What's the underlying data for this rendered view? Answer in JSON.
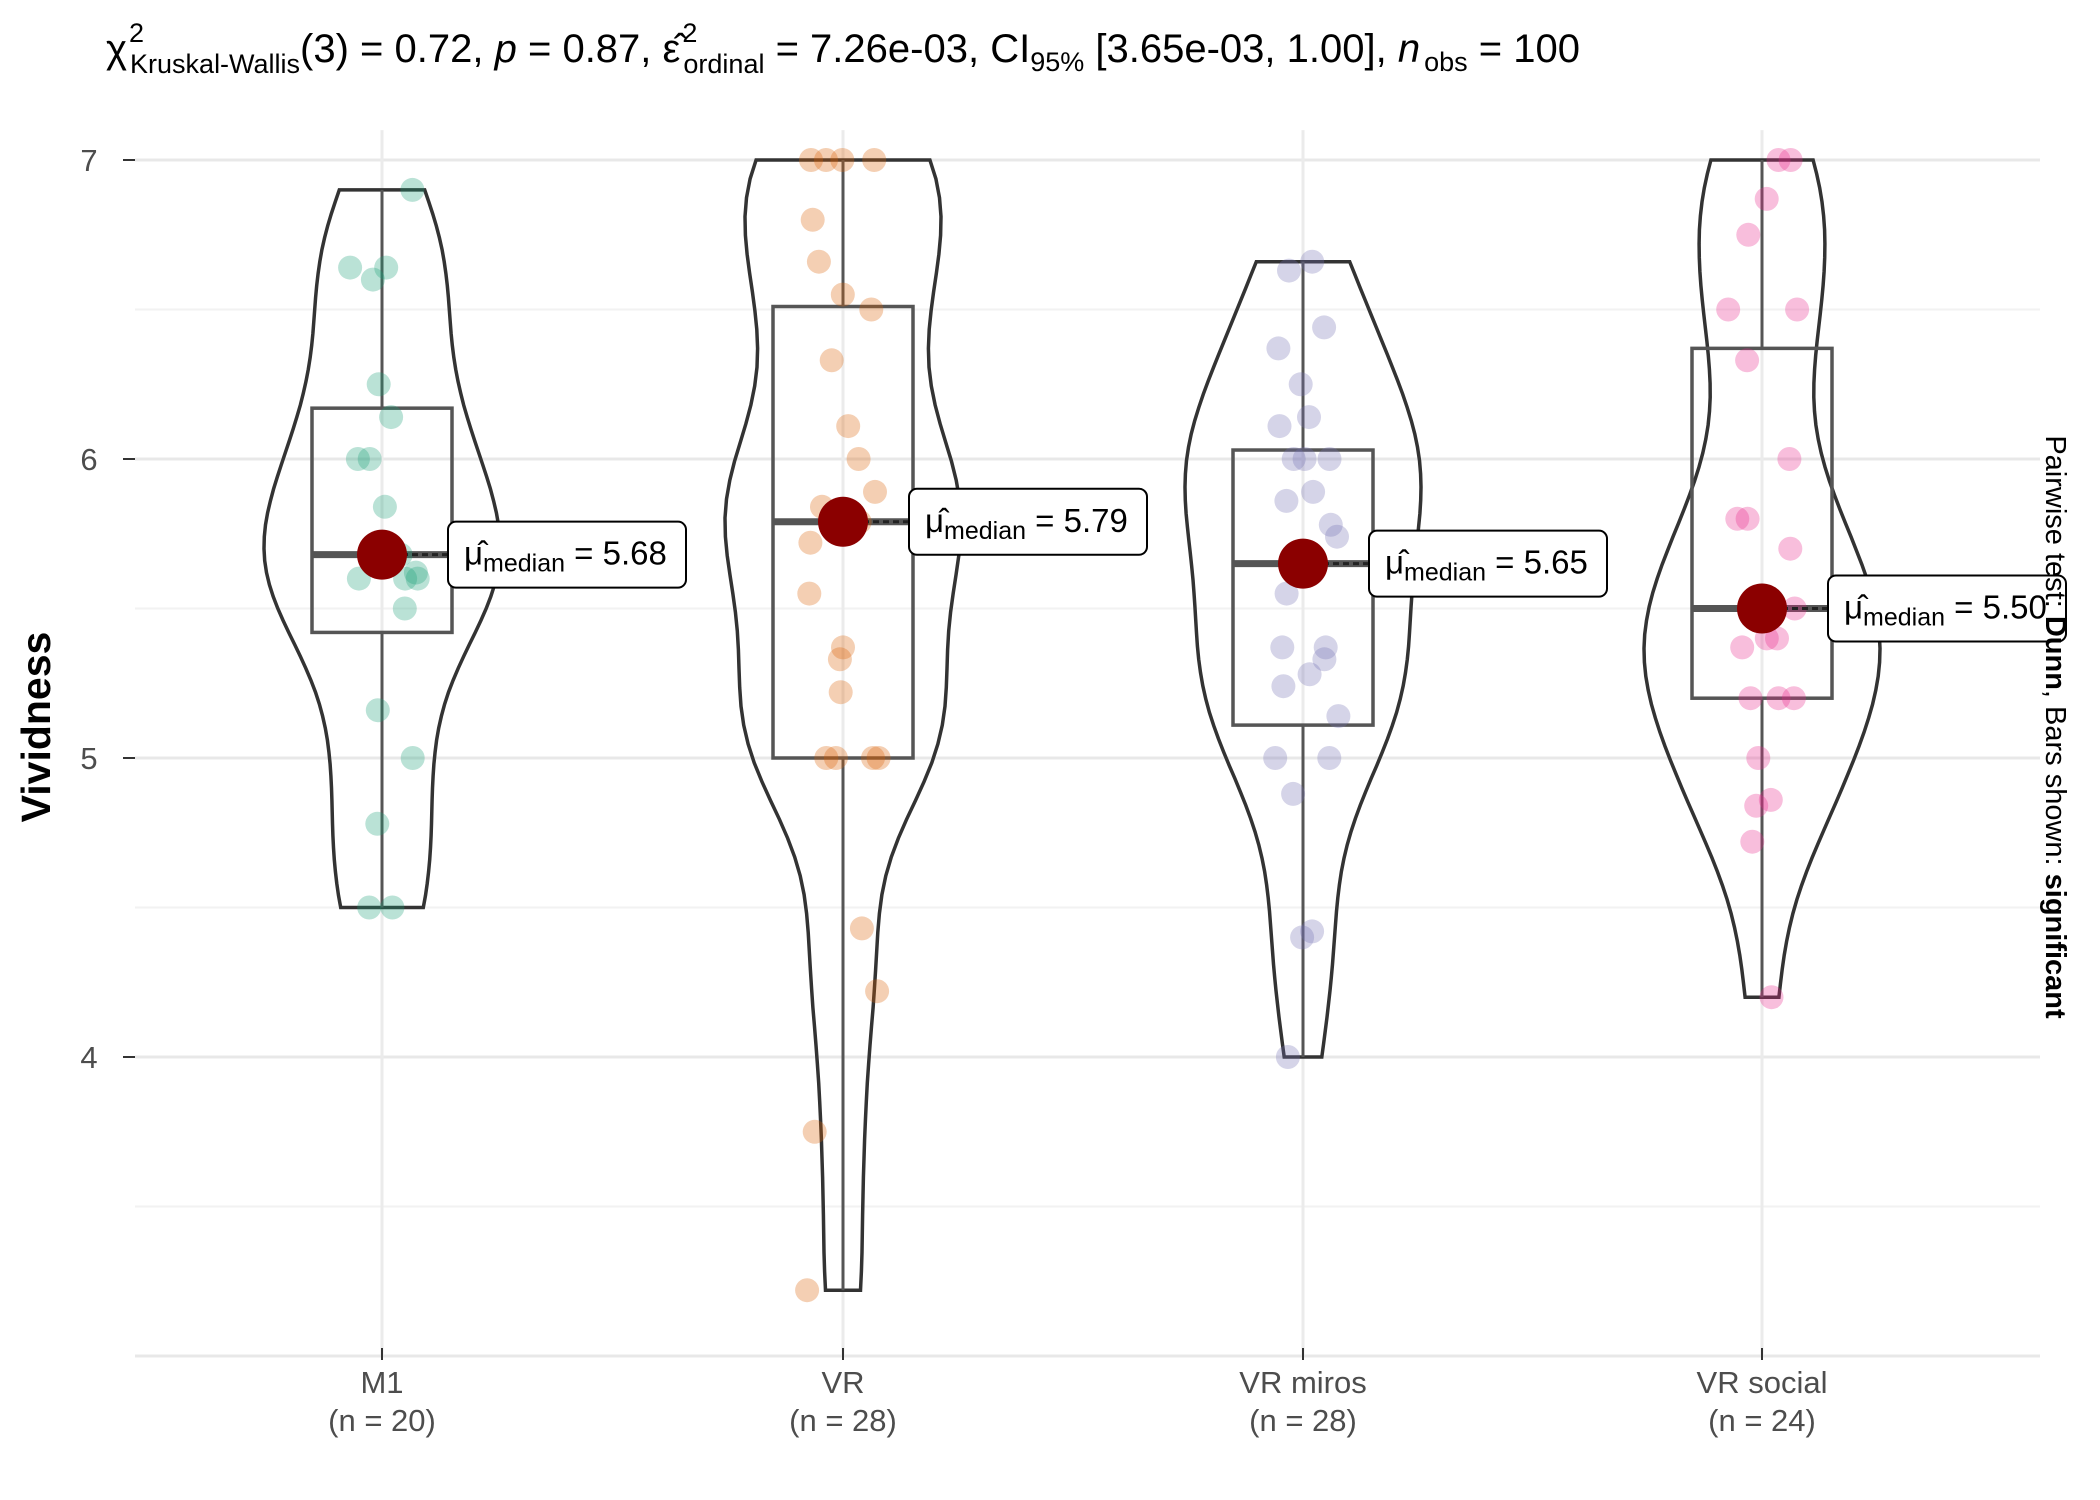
{
  "chart_data": {
    "type": "violin-box",
    "subtitle": {
      "stat": "χ",
      "stat_sup": "2",
      "stat_sub": "Kruskal-Wallis",
      "df": "(3) = 0.72, ",
      "p_symbol": "p",
      "p_value": " = 0.87, ",
      "effect_symbol": "ε̂",
      "effect_sup": "2",
      "effect_sub": "ordinal",
      "effect_value": " = 7.26e-03, CI",
      "ci_sub": "95%",
      "ci_value": " [3.65e-03, 1.00], ",
      "n_symbol": "n",
      "n_sub": "obs",
      "n_value": " = 100"
    },
    "caption": {
      "prefix": "Pairwise test: ",
      "test": "Dunn",
      "middle": ", Bars shown: ",
      "shown": "significant"
    },
    "ylabel": "Vividness",
    "ylim": [
      3.0,
      7.1
    ],
    "yticks": [
      4,
      5,
      6,
      7
    ],
    "grid": true,
    "groups": [
      {
        "name": "M1",
        "n_label": "(n = 20)",
        "color": "#1b9e77",
        "median": 5.68,
        "q1": 5.42,
        "q3": 6.17,
        "min": 4.5,
        "max": 6.9,
        "label_symbol": "μ̂",
        "label_sub": "median",
        "label_value": " = 5.68",
        "points": [
          6.9,
          6.64,
          6.64,
          6.6,
          6.25,
          6.14,
          6.0,
          6.0,
          5.84,
          5.62,
          5.6,
          5.6,
          5.6,
          5.5,
          5.16,
          5.0,
          4.78,
          4.5,
          4.5,
          5.68
        ]
      },
      {
        "name": "VR",
        "n_label": "(n = 28)",
        "color": "#d95f02",
        "median": 5.79,
        "q1": 5.0,
        "q3": 6.51,
        "min": 3.22,
        "max": 7.0,
        "label_symbol": "μ̂",
        "label_sub": "median",
        "label_value": " = 5.79",
        "points": [
          7.0,
          7.0,
          7.0,
          7.0,
          6.8,
          6.66,
          6.55,
          6.5,
          6.33,
          6.11,
          6.0,
          5.89,
          5.84,
          5.79,
          5.72,
          5.55,
          5.37,
          5.33,
          5.22,
          5.0,
          5.0,
          5.0,
          5.0,
          4.43,
          4.22,
          3.75,
          3.22,
          5.79
        ]
      },
      {
        "name": "VR miros",
        "n_label": "(n = 28)",
        "color": "#7570b3",
        "median": 5.65,
        "q1": 5.11,
        "q3": 6.03,
        "min": 4.0,
        "max": 6.66,
        "label_symbol": "μ̂",
        "label_sub": "median",
        "label_value": " = 5.65",
        "points": [
          6.66,
          6.63,
          6.44,
          6.37,
          6.25,
          6.14,
          6.11,
          6.0,
          6.0,
          6.0,
          5.89,
          5.86,
          5.78,
          5.74,
          5.63,
          5.55,
          5.37,
          5.37,
          5.33,
          5.28,
          5.24,
          5.14,
          5.0,
          5.0,
          4.88,
          4.42,
          4.4,
          4.0
        ]
      },
      {
        "name": "VR social",
        "n_label": "(n = 24)",
        "color": "#e7298a",
        "median": 5.5,
        "q1": 5.2,
        "q3": 6.37,
        "min": 4.2,
        "max": 7.0,
        "label_symbol": "μ̂",
        "label_sub": "median",
        "label_value": " = 5.50",
        "points": [
          7.0,
          7.0,
          6.87,
          6.75,
          6.5,
          6.5,
          6.33,
          6.0,
          5.8,
          5.8,
          5.7,
          5.5,
          5.4,
          5.4,
          5.37,
          5.2,
          5.2,
          5.2,
          5.0,
          4.86,
          4.84,
          4.72,
          4.2,
          5.5
        ]
      }
    ]
  }
}
